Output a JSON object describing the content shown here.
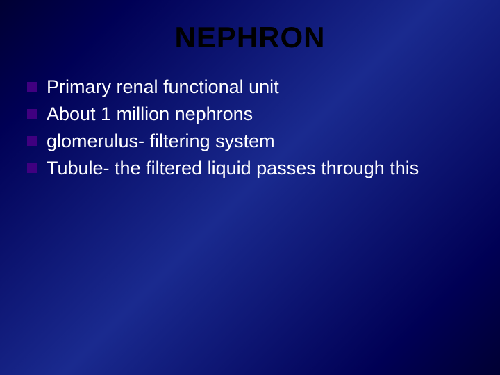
{
  "slide": {
    "title": "NEPHRON",
    "bullets": [
      "Primary renal functional unit",
      "About 1 million nephrons",
      "glomerulus- filtering system",
      "Tubule- the filtered liquid passes through this"
    ],
    "title_fontsize": 42,
    "title_color": "#000000",
    "bullet_fontsize": 27,
    "bullet_color": "#ffffff",
    "bullet_marker_color": "#400080",
    "background_gradient": [
      "#000033",
      "#000055",
      "#1a2a8f",
      "#000055",
      "#000033"
    ]
  }
}
